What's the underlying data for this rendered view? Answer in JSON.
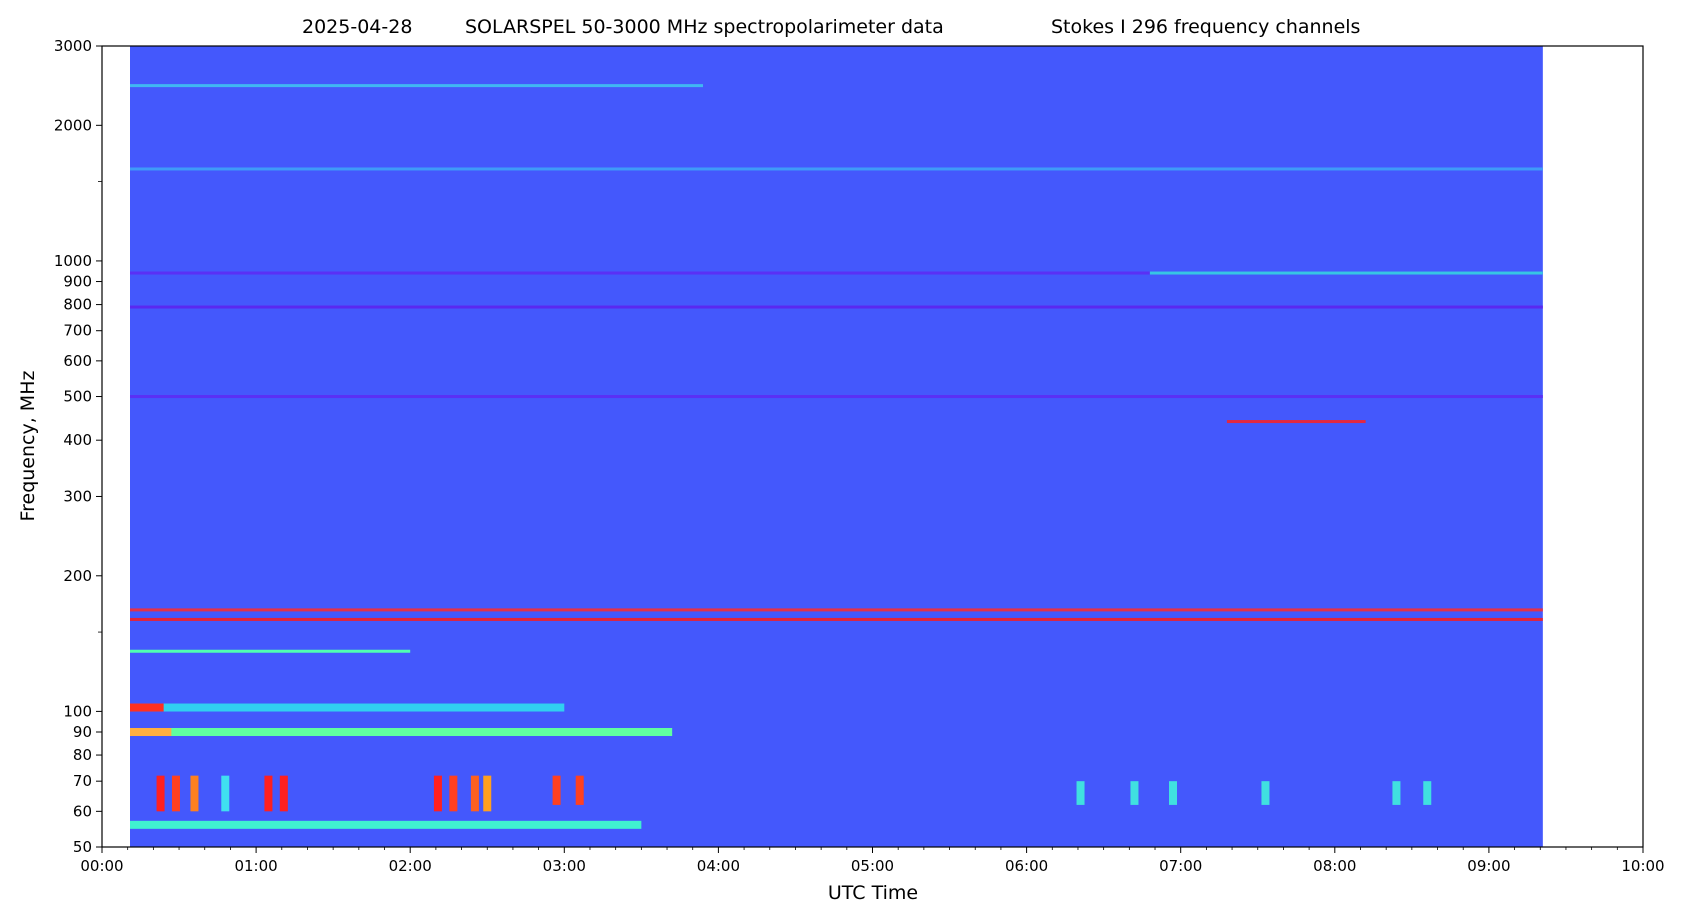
{
  "chart_data": {
    "type": "heatmap",
    "title_parts": [
      "2025-04-28",
      "SOLARSPEL   50-3000 MHz spectropolarimeter data",
      "Stokes I   296 frequency channels"
    ],
    "xlabel": "UTC Time",
    "ylabel": "Frequency, MHz",
    "x_ticks": [
      "00:00",
      "01:00",
      "02:00",
      "03:00",
      "04:00",
      "05:00",
      "06:00",
      "07:00",
      "08:00",
      "09:00",
      "10:00"
    ],
    "x_range_hours": [
      0,
      10
    ],
    "data_time_range_hours": [
      0.0,
      9.35
    ],
    "y_scale": "log",
    "y_range_mhz": [
      50,
      3000
    ],
    "y_ticks": [
      50,
      60,
      70,
      80,
      90,
      100,
      200,
      300,
      400,
      500,
      600,
      700,
      800,
      900,
      1000,
      2000,
      3000
    ],
    "y_tick_labels": [
      "50",
      "60",
      "70",
      "80",
      "90",
      "100",
      "200",
      "300",
      "400",
      "500",
      "600",
      "700",
      "800",
      "900",
      "1000",
      "2000",
      "3000"
    ],
    "y_minor_ticks": [
      150,
      1500
    ],
    "colormap": "rainbow",
    "background_color": "#4458fc",
    "features": [
      {
        "name": "band-2450",
        "freq_mhz": 2450,
        "t_start": 0.0,
        "t_end": 3.9,
        "color": "#40c8f0",
        "style": "dotted"
      },
      {
        "name": "band-1600",
        "freq_mhz": 1600,
        "t_start": 0.0,
        "t_end": 9.35,
        "color": "#3f9bf8",
        "style": "solid"
      },
      {
        "name": "band-940",
        "freq_mhz": 940,
        "t_start": 0.0,
        "t_end": 9.35,
        "color": "#5a30f5",
        "style": "solid"
      },
      {
        "name": "band-940-bright",
        "freq_mhz": 940,
        "t_start": 6.8,
        "t_end": 9.35,
        "color": "#30e0e0",
        "style": "dotted"
      },
      {
        "name": "band-790",
        "freq_mhz": 790,
        "t_start": 0.0,
        "t_end": 9.35,
        "color": "#5a28f0",
        "style": "solid"
      },
      {
        "name": "band-500",
        "freq_mhz": 500,
        "t_start": 0.0,
        "t_end": 9.35,
        "color": "#5a30f5",
        "style": "solid"
      },
      {
        "name": "band-440-red",
        "freq_mhz": 440,
        "t_start": 7.3,
        "t_end": 8.2,
        "color": "#ff2020",
        "style": "dotted"
      },
      {
        "name": "band-168",
        "freq_mhz": 168,
        "t_start": 0.0,
        "t_end": 9.35,
        "color": "#ff2a2a",
        "style": "dotted"
      },
      {
        "name": "band-160",
        "freq_mhz": 160,
        "t_start": 0.0,
        "t_end": 9.35,
        "color": "#ff1a1a",
        "style": "dotted"
      },
      {
        "name": "band-136",
        "freq_mhz": 136,
        "t_start": 0.0,
        "t_end": 2.0,
        "color": "#50ffb0",
        "style": "solid"
      },
      {
        "name": "band-102",
        "freq_mhz": 102,
        "t_start": 0.0,
        "t_end": 3.0,
        "color": "#30d0f0",
        "style": "solid"
      },
      {
        "name": "band-102-red",
        "freq_mhz": 102,
        "t_start": 0.0,
        "t_end": 0.4,
        "color": "#ff3020",
        "style": "solid"
      },
      {
        "name": "band-90",
        "freq_mhz": 90,
        "t_start": 0.0,
        "t_end": 3.7,
        "color": "#60ffa0",
        "style": "solid"
      },
      {
        "name": "band-90-hot",
        "freq_mhz": 90,
        "t_start": 0.0,
        "t_end": 0.45,
        "color": "#ffb040",
        "style": "solid"
      },
      {
        "name": "band-56",
        "freq_mhz": 56,
        "t_start": 0.0,
        "t_end": 3.5,
        "color": "#40f0d0",
        "style": "solid"
      }
    ],
    "bursts": [
      {
        "t": 0.38,
        "f_low": 60,
        "f_high": 72,
        "color": "#ff2020"
      },
      {
        "t": 0.48,
        "f_low": 60,
        "f_high": 72,
        "color": "#ff4020"
      },
      {
        "t": 0.6,
        "f_low": 60,
        "f_high": 72,
        "color": "#ff8020"
      },
      {
        "t": 0.8,
        "f_low": 60,
        "f_high": 72,
        "color": "#40e0f0"
      },
      {
        "t": 1.08,
        "f_low": 60,
        "f_high": 72,
        "color": "#ff2020"
      },
      {
        "t": 1.18,
        "f_low": 60,
        "f_high": 72,
        "color": "#ff2020"
      },
      {
        "t": 2.18,
        "f_low": 60,
        "f_high": 72,
        "color": "#ff2020"
      },
      {
        "t": 2.28,
        "f_low": 60,
        "f_high": 72,
        "color": "#ff4020"
      },
      {
        "t": 2.42,
        "f_low": 60,
        "f_high": 72,
        "color": "#ff6020"
      },
      {
        "t": 2.5,
        "f_low": 60,
        "f_high": 72,
        "color": "#ffa020"
      },
      {
        "t": 2.95,
        "f_low": 62,
        "f_high": 72,
        "color": "#ff4020"
      },
      {
        "t": 3.1,
        "f_low": 62,
        "f_high": 72,
        "color": "#ff4020"
      },
      {
        "t": 6.35,
        "f_low": 62,
        "f_high": 70,
        "color": "#40e0e0"
      },
      {
        "t": 6.7,
        "f_low": 62,
        "f_high": 70,
        "color": "#40e0e0"
      },
      {
        "t": 6.95,
        "f_low": 62,
        "f_high": 70,
        "color": "#40e0e0"
      },
      {
        "t": 7.55,
        "f_low": 62,
        "f_high": 70,
        "color": "#40e0e0"
      },
      {
        "t": 8.4,
        "f_low": 62,
        "f_high": 70,
        "color": "#40e0e0"
      },
      {
        "t": 8.6,
        "f_low": 62,
        "f_high": 70,
        "color": "#40e0e0"
      }
    ]
  }
}
